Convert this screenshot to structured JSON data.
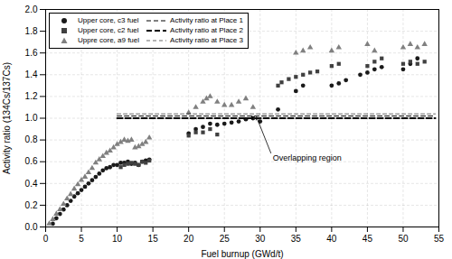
{
  "chart_data": {
    "type": "scatter",
    "xlabel": "Fuel burnup (GWd/t)",
    "ylabel": "Activity ratio (134Cs/137Cs)",
    "xlim": [
      0,
      55
    ],
    "ylim": [
      0.0,
      2.0
    ],
    "xticks": [
      0,
      5,
      10,
      15,
      20,
      25,
      30,
      35,
      40,
      45,
      50,
      55
    ],
    "yticks": [
      {
        "value": 0.0,
        "label": "0.0"
      },
      0.2,
      0.4,
      0.6,
      0.8,
      {
        "value": 1.0,
        "label": "1.0"
      },
      1.2,
      1.4,
      1.6,
      1.8,
      {
        "value": 2.0,
        "label": "2.0"
      }
    ],
    "grid": true,
    "legend": "upper left",
    "series": [
      {
        "name": "Upper core, c3 fuel",
        "type": "scatter",
        "marker": "circle",
        "color": "#1a1a1a",
        "x": [
          1.0,
          1.5,
          2.0,
          2.5,
          3.0,
          3.5,
          4.0,
          4.5,
          5.0,
          5.5,
          6.0,
          6.5,
          7.0,
          7.5,
          8.0,
          8.5,
          9.0,
          9.5,
          10.0,
          10.5,
          11.0,
          11.5,
          12.0,
          12.5,
          13.0,
          13.5,
          14.0,
          14.5,
          20.0,
          21.0,
          22.0,
          23.0,
          24.0,
          25.0,
          26.0,
          27.0,
          28.0,
          29.0,
          30.0,
          32.5,
          35.0,
          36.0,
          40.0,
          41.0,
          42.0,
          44.0,
          45.0,
          46.0,
          47.0,
          50.0,
          51.0,
          52.0
        ],
        "values": [
          0.03,
          0.08,
          0.12,
          0.16,
          0.2,
          0.24,
          0.28,
          0.31,
          0.34,
          0.37,
          0.4,
          0.43,
          0.46,
          0.49,
          0.52,
          0.54,
          0.55,
          0.57,
          0.57,
          0.59,
          0.59,
          0.6,
          0.58,
          0.59,
          0.57,
          0.6,
          0.61,
          0.62,
          0.86,
          0.9,
          0.92,
          0.95,
          0.94,
          0.95,
          0.96,
          0.97,
          0.99,
          1.0,
          0.97,
          1.08,
          1.25,
          1.3,
          1.3,
          1.32,
          1.35,
          1.4,
          1.42,
          1.45,
          1.47,
          1.45,
          1.5,
          1.55
        ]
      },
      {
        "name": "Upper core, c2 fuel",
        "type": "scatter",
        "marker": "square",
        "color": "#404040",
        "x": [
          10.5,
          11.0,
          11.5,
          12.0,
          12.5,
          13.0,
          13.5,
          14.0,
          14.5,
          20.0,
          21.0,
          22.0,
          23.0,
          24.0,
          32.5,
          33.0,
          34.0,
          35.0,
          36.0,
          37.0,
          38.0,
          40.0,
          41.0,
          45.0,
          46.0,
          47.0,
          50.0,
          51.0,
          52.0,
          53.0
        ],
        "values": [
          0.55,
          0.57,
          0.58,
          0.59,
          0.58,
          0.57,
          0.6,
          0.59,
          0.61,
          0.84,
          0.87,
          0.87,
          0.9,
          0.85,
          1.3,
          1.33,
          1.36,
          1.38,
          1.4,
          1.42,
          1.43,
          1.48,
          1.5,
          1.48,
          1.52,
          1.55,
          1.5,
          1.52,
          1.5,
          1.52
        ]
      },
      {
        "name": "Uppre core, a9 fuel",
        "type": "scatter",
        "marker": "triangle",
        "color": "#808080",
        "x": [
          0.5,
          1.0,
          1.5,
          2.0,
          2.5,
          3.0,
          3.5,
          4.0,
          4.5,
          5.0,
          5.5,
          6.0,
          6.5,
          7.0,
          7.5,
          8.0,
          8.5,
          9.0,
          9.5,
          10.0,
          10.5,
          11.0,
          11.5,
          12.0,
          12.5,
          13.0,
          13.5,
          14.0,
          14.5,
          20.0,
          21.0,
          22.0,
          22.5,
          23.0,
          24.0,
          25.0,
          26.0,
          27.0,
          28.0,
          29.0,
          35.0,
          36.0,
          37.0,
          40.0,
          41.0,
          45.0,
          46.0,
          50.0,
          51.0,
          52.0,
          53.0
        ],
        "values": [
          0.03,
          0.07,
          0.12,
          0.16,
          0.21,
          0.26,
          0.3,
          0.35,
          0.39,
          0.43,
          0.46,
          0.5,
          0.54,
          0.59,
          0.62,
          0.65,
          0.68,
          0.7,
          0.73,
          0.76,
          0.78,
          0.8,
          0.79,
          0.8,
          0.73,
          0.74,
          0.76,
          0.78,
          0.82,
          1.05,
          1.1,
          1.15,
          1.18,
          1.2,
          1.15,
          1.12,
          1.12,
          1.15,
          1.18,
          1.1,
          1.6,
          1.62,
          1.65,
          1.62,
          1.65,
          1.68,
          1.62,
          1.65,
          1.68,
          1.65,
          1.68
        ]
      },
      {
        "name": "Activity ratio at Place 1",
        "type": "line",
        "line_style": "dashed",
        "color": "#000000",
        "x": [
          10.0,
          54.5
        ],
        "values": [
          1.02,
          1.02
        ]
      },
      {
        "name": "Activity ratio at Place 2",
        "type": "line",
        "line_style": "dashed",
        "color": "#000000",
        "x": [
          10.0,
          54.5
        ],
        "values": [
          1.0,
          1.0
        ]
      },
      {
        "name": "Activity ratio at Place 3",
        "type": "line",
        "line_style": "dashed",
        "color": "#000000",
        "x": [
          10.0,
          54.5
        ],
        "values": [
          1.04,
          1.04
        ]
      }
    ],
    "annotations": [
      {
        "text": "Overlapping region",
        "x": 31.5,
        "y": 0.68,
        "arrow_x": 29.5,
        "arrow_y": 1.01
      }
    ]
  }
}
